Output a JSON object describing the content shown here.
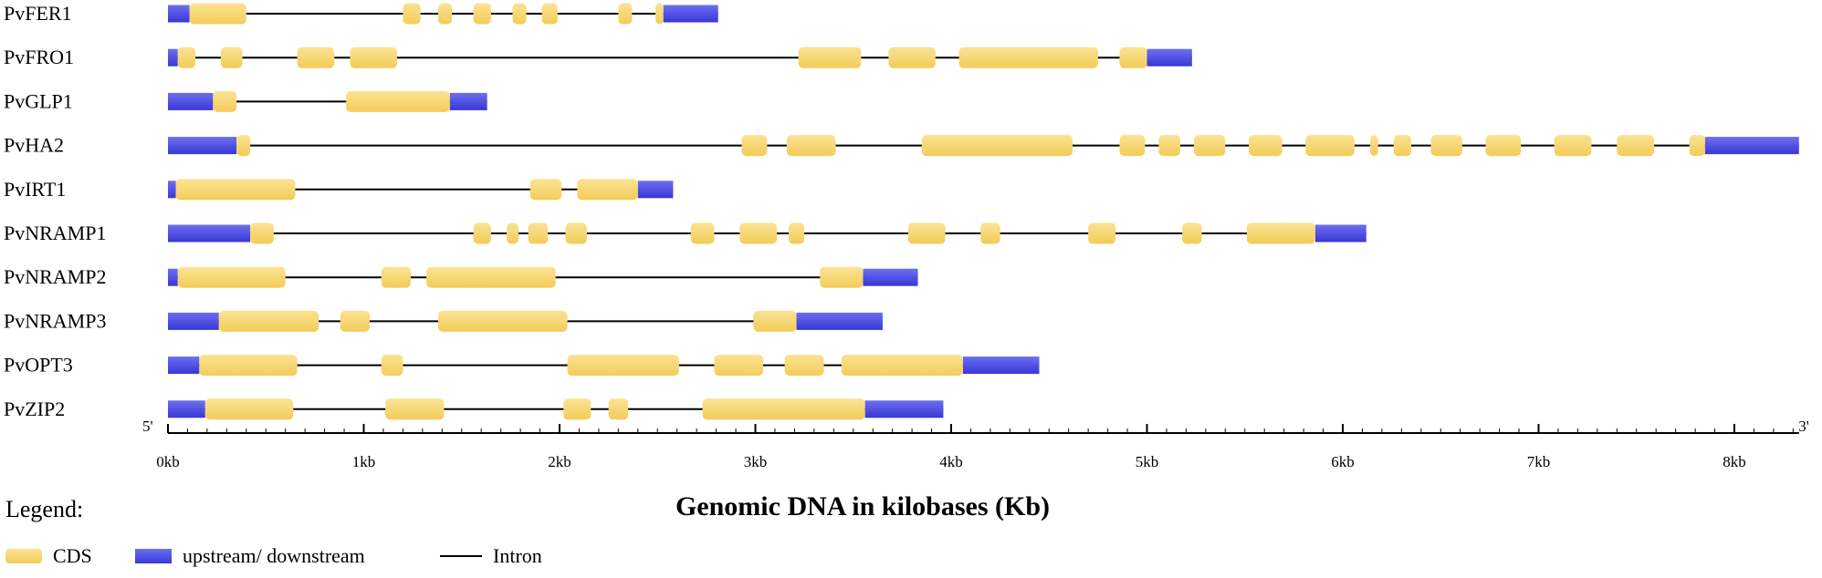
{
  "units": "kb",
  "axis": {
    "title": "Genomic DNA in kilobases (Kb)",
    "start_label": "5'",
    "end_label": "3'",
    "ticks": [
      "0kb",
      "1kb",
      "2kb",
      "3kb",
      "4kb",
      "5kb",
      "6kb",
      "7kb",
      "8kb"
    ],
    "range": [
      0,
      8.33
    ]
  },
  "legend": {
    "title": "Legend:",
    "items": [
      {
        "key": "cds",
        "label": "CDS"
      },
      {
        "key": "utr",
        "label": "upstream/ downstream"
      },
      {
        "key": "intron",
        "label": "Intron"
      }
    ]
  },
  "colors": {
    "cds_light": "#fbe393",
    "cds_dark": "#f3cc59",
    "utr_light": "#6e6ff0",
    "utr_dark": "#3737d6",
    "intron": "#000000",
    "axis": "#000000"
  },
  "genes": [
    {
      "name": "PvFER1",
      "length": 2.81,
      "upstream": [
        0,
        0.11
      ],
      "downstream": [
        2.53,
        2.81
      ],
      "cds": [
        [
          0.11,
          0.4
        ],
        [
          1.2,
          1.29
        ],
        [
          1.38,
          1.45
        ],
        [
          1.56,
          1.65
        ],
        [
          1.76,
          1.83
        ],
        [
          1.91,
          1.99
        ],
        [
          2.3,
          2.37
        ],
        [
          2.49,
          2.53
        ]
      ]
    },
    {
      "name": "PvFRO1",
      "length": 5.23,
      "upstream": [
        0,
        0.05
      ],
      "downstream": [
        5.0,
        5.23
      ],
      "cds": [
        [
          0.05,
          0.14
        ],
        [
          0.27,
          0.38
        ],
        [
          0.66,
          0.85
        ],
        [
          0.93,
          1.17
        ],
        [
          3.22,
          3.54
        ],
        [
          3.68,
          3.92
        ],
        [
          4.04,
          4.75
        ],
        [
          4.86,
          5.0
        ]
      ]
    },
    {
      "name": "PvGLP1",
      "length": 1.63,
      "upstream": [
        0,
        0.23
      ],
      "downstream": [
        1.44,
        1.63
      ],
      "cds": [
        [
          0.23,
          0.35
        ],
        [
          0.91,
          1.44
        ]
      ]
    },
    {
      "name": "PvHA2",
      "length": 8.33,
      "upstream": [
        0,
        0.35
      ],
      "downstream": [
        7.85,
        8.33
      ],
      "cds": [
        [
          0.35,
          0.42
        ],
        [
          2.93,
          3.06
        ],
        [
          3.16,
          3.41
        ],
        [
          3.85,
          4.62
        ],
        [
          4.86,
          4.99
        ],
        [
          5.06,
          5.17
        ],
        [
          5.24,
          5.4
        ],
        [
          5.52,
          5.69
        ],
        [
          5.81,
          6.06
        ],
        [
          6.14,
          6.18
        ],
        [
          6.26,
          6.35
        ],
        [
          6.45,
          6.61
        ],
        [
          6.73,
          6.91
        ],
        [
          7.08,
          7.27
        ],
        [
          7.4,
          7.59
        ],
        [
          7.77,
          7.85
        ]
      ]
    },
    {
      "name": "PvIRT1",
      "length": 2.58,
      "upstream": [
        0,
        0.04
      ],
      "downstream": [
        2.4,
        2.58
      ],
      "cds": [
        [
          0.04,
          0.65
        ],
        [
          1.85,
          2.01
        ],
        [
          2.09,
          2.4
        ]
      ]
    },
    {
      "name": "PvNRAMP1",
      "length": 6.12,
      "upstream": [
        0,
        0.42
      ],
      "downstream": [
        5.86,
        6.12
      ],
      "cds": [
        [
          0.42,
          0.54
        ],
        [
          1.56,
          1.65
        ],
        [
          1.73,
          1.79
        ],
        [
          1.84,
          1.94
        ],
        [
          2.03,
          2.14
        ],
        [
          2.67,
          2.79
        ],
        [
          2.92,
          3.11
        ],
        [
          3.17,
          3.25
        ],
        [
          3.78,
          3.97
        ],
        [
          4.15,
          4.25
        ],
        [
          4.7,
          4.84
        ],
        [
          5.18,
          5.28
        ],
        [
          5.51,
          5.86
        ]
      ]
    },
    {
      "name": "PvNRAMP2",
      "length": 3.83,
      "upstream": [
        0,
        0.05
      ],
      "downstream": [
        3.55,
        3.83
      ],
      "cds": [
        [
          0.05,
          0.6
        ],
        [
          1.09,
          1.24
        ],
        [
          1.32,
          1.98
        ],
        [
          3.33,
          3.55
        ]
      ]
    },
    {
      "name": "PvNRAMP3",
      "length": 3.65,
      "upstream": [
        0,
        0.26
      ],
      "downstream": [
        3.21,
        3.65
      ],
      "cds": [
        [
          0.26,
          0.77
        ],
        [
          0.88,
          1.03
        ],
        [
          1.38,
          2.04
        ],
        [
          2.99,
          3.21
        ]
      ]
    },
    {
      "name": "PvOPT3",
      "length": 4.45,
      "upstream": [
        0,
        0.16
      ],
      "downstream": [
        4.06,
        4.45
      ],
      "cds": [
        [
          0.16,
          0.66
        ],
        [
          1.09,
          1.2
        ],
        [
          2.04,
          2.61
        ],
        [
          2.79,
          3.04
        ],
        [
          3.15,
          3.35
        ],
        [
          3.44,
          4.06
        ]
      ]
    },
    {
      "name": "PvZIP2",
      "length": 3.96,
      "upstream": [
        0,
        0.19
      ],
      "downstream": [
        3.56,
        3.96
      ],
      "cds": [
        [
          0.19,
          0.64
        ],
        [
          1.11,
          1.41
        ],
        [
          2.02,
          2.16
        ],
        [
          2.25,
          2.35
        ],
        [
          2.73,
          3.56
        ]
      ]
    }
  ]
}
